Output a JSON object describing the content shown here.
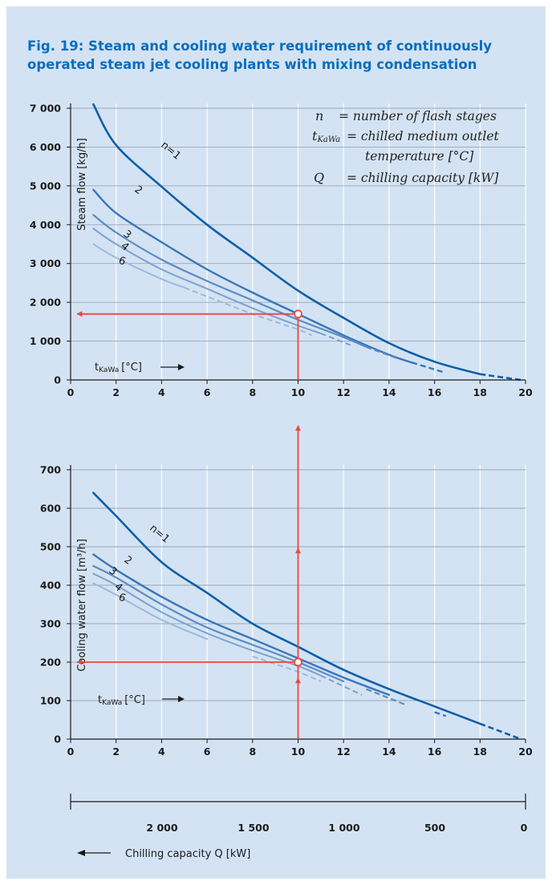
{
  "title": {
    "line1": "Fig. 19: Steam and cooling water requirement of continuously",
    "line2": "operated steam jet cooling plants with mixing condensation"
  },
  "legend": {
    "n_sym": "n",
    "n_text": "= number of flash stages",
    "t_sym": "t",
    "t_sub": "KaWa",
    "t_text1": "= chilled medium outlet",
    "t_text2": "temperature [°C]",
    "q_sym": "Q",
    "q_text": "= chilling capacity [kW]"
  },
  "colors": {
    "background": "#d4e3f3",
    "title": "#0a6ebd",
    "n1": "#0d5fa8",
    "n2": "#3a76b8",
    "n3": "#5b8cc4",
    "n4": "#7aa2d0",
    "n6": "#9bbadd",
    "arrow": "#e8483a"
  },
  "chart_data": [
    {
      "type": "line",
      "ylabel": "Steam flow [kg/h]",
      "xlabel": "tKaWa [°C]",
      "x_ticks": [
        "0",
        "2",
        "4",
        "6",
        "8",
        "10",
        "12",
        "14",
        "16",
        "18",
        "20"
      ],
      "y_ticks": [
        "0",
        "1 000",
        "2 000",
        "3 000",
        "4 000",
        "5 000",
        "6 000",
        "7 000"
      ],
      "xlim": [
        0,
        20
      ],
      "ylim": [
        0,
        7000
      ],
      "grid": true,
      "series": [
        {
          "name": "n=1",
          "label": "n=1",
          "x": [
            1,
            2,
            4,
            6,
            8,
            10,
            12,
            14,
            16,
            18,
            19.8
          ],
          "y": [
            7100,
            6050,
            4980,
            4000,
            3150,
            2300,
            1600,
            950,
            470,
            150,
            0
          ],
          "dash_from": 18
        },
        {
          "name": "2",
          "label": "2",
          "x": [
            1,
            2,
            4,
            6,
            8,
            10,
            12,
            14,
            15,
            16.4
          ],
          "y": [
            4900,
            4300,
            3550,
            2850,
            2250,
            1700,
            1150,
            650,
            450,
            200
          ],
          "dash_from": 15
        },
        {
          "name": "3",
          "label": "3",
          "x": [
            1,
            2,
            4,
            6,
            8,
            10,
            12,
            13,
            14.4
          ],
          "y": [
            4250,
            3800,
            3100,
            2550,
            2050,
            1550,
            1100,
            850,
            550
          ],
          "dash_from": 13
        },
        {
          "name": "4",
          "label": "4",
          "x": [
            1,
            2,
            4,
            6,
            8,
            10,
            11,
            12.3
          ],
          "y": [
            3900,
            3500,
            2850,
            2350,
            1850,
            1400,
            1200,
            900
          ],
          "dash_from": 11
        },
        {
          "name": "6",
          "label": "6",
          "x": [
            1,
            2,
            4,
            5,
            6,
            8,
            10,
            10.6
          ],
          "y": [
            3500,
            3150,
            2600,
            2380,
            2150,
            1700,
            1300,
            1150
          ],
          "dash_from": 5
        }
      ],
      "reading": {
        "x": 10,
        "y": 1700
      },
      "x_axis_label": {
        "base": "t",
        "sub": "KaWa",
        "unit": "[°C]"
      }
    },
    {
      "type": "line",
      "ylabel": "Cooling water flow [m³/h]",
      "xlabel": "tKaWa [°C]",
      "x_ticks": [
        "0",
        "2",
        "4",
        "6",
        "8",
        "10",
        "12",
        "14",
        "16",
        "18",
        "20"
      ],
      "y_ticks": [
        "0",
        "100",
        "200",
        "300",
        "400",
        "500",
        "600",
        "700"
      ],
      "xlim": [
        0,
        20
      ],
      "ylim": [
        0,
        700
      ],
      "grid": true,
      "series": [
        {
          "name": "n=1",
          "label": "n=1",
          "x": [
            1,
            2,
            4,
            6,
            8,
            10,
            12,
            14,
            16,
            18,
            19.8
          ],
          "y": [
            640,
            580,
            460,
            380,
            300,
            240,
            180,
            130,
            85,
            40,
            0
          ],
          "dash_from": 18
        },
        {
          "name": "2",
          "label": "2",
          "x": [
            1,
            2,
            4,
            6,
            8,
            10,
            12,
            14,
            16,
            16.5
          ],
          "y": [
            480,
            440,
            370,
            310,
            260,
            210,
            160,
            115,
            70,
            60
          ],
          "dash_from": 15
        },
        {
          "name": "3",
          "label": "3",
          "x": [
            1,
            2,
            4,
            6,
            8,
            10,
            12,
            13,
            14.7
          ],
          "y": [
            450,
            420,
            350,
            290,
            245,
            200,
            150,
            130,
            90
          ],
          "dash_from": 12.5
        },
        {
          "name": "4",
          "label": "4",
          "x": [
            1,
            2,
            4,
            6,
            8,
            10,
            11,
            12.8
          ],
          "y": [
            430,
            400,
            330,
            275,
            230,
            190,
            165,
            115
          ],
          "dash_from": 11
        },
        {
          "name": "6",
          "label": "6",
          "x": [
            1,
            2,
            4,
            6,
            8,
            9,
            10,
            11
          ],
          "y": [
            405,
            375,
            310,
            260,
            215,
            195,
            175,
            150
          ],
          "dash_from": 7.5
        }
      ],
      "reading": {
        "x": 10,
        "y": 200
      },
      "x_axis_label": {
        "base": "t",
        "sub": "KaWa",
        "unit": "[°C]"
      }
    }
  ],
  "capacity_axis": {
    "ticks": [
      "2 000",
      "1 500",
      "1 000",
      "500",
      "0"
    ],
    "label": "Chilling capacity Q [kW]"
  }
}
